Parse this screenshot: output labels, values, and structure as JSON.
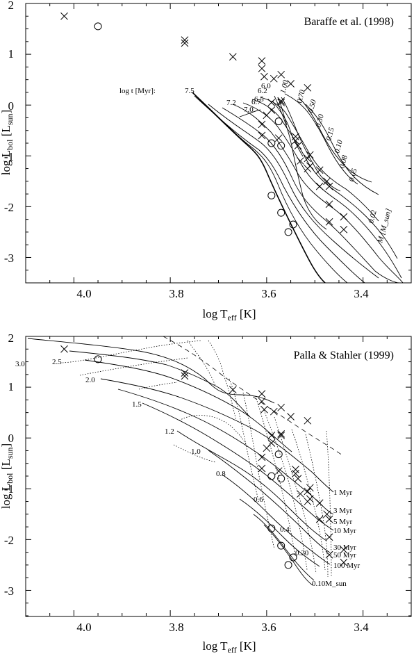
{
  "chart_data": [
    {
      "type": "scatter",
      "title": "Baraffe et al. (1998)",
      "xlabel": "log T_eff [K]",
      "ylabel": "log L_bol [L_sun]",
      "xlim": [
        4.1,
        3.3
      ],
      "ylim": [
        -3.5,
        2.0
      ],
      "xticks": [
        "4.0",
        "3.8",
        "3.6",
        "3.4"
      ],
      "yticks": [
        "2",
        "1",
        "0",
        "-1",
        "-2",
        "-3"
      ],
      "age_label": "log t [Myr]:",
      "mass_label": "M [M_sun]",
      "isochrone_labels": [
        "7.5",
        "7.2",
        "7.0",
        "6.7",
        "6.5",
        "6.2",
        "6.0"
      ],
      "mass_labels": [
        "1.00",
        "0.70",
        "0.50",
        "0.30",
        "0.15",
        "0.10",
        "0.08",
        "0.05",
        "0.02"
      ],
      "series": [
        {
          "marker": "cross",
          "points": [
            [
              4.02,
              1.75
            ],
            [
              3.77,
              1.28
            ],
            [
              3.77,
              1.22
            ],
            [
              3.67,
              0.95
            ],
            [
              3.61,
              0.87
            ],
            [
              3.61,
              0.72
            ],
            [
              3.585,
              0.52
            ],
            [
              3.605,
              0.56
            ],
            [
              3.57,
              0.6
            ],
            [
              3.55,
              0.42
            ],
            [
              3.515,
              0.34
            ],
            [
              3.59,
              0.05
            ],
            [
              3.57,
              0.08
            ],
            [
              3.57,
              0.05
            ],
            [
              3.59,
              -0.1
            ],
            [
              3.6,
              -0.2
            ],
            [
              3.61,
              -0.38
            ],
            [
              3.61,
              -0.6
            ],
            [
              3.54,
              -0.62
            ],
            [
              3.535,
              -0.8
            ],
            [
              3.54,
              -0.7
            ],
            [
              3.51,
              -0.98
            ],
            [
              3.515,
              -1.05
            ],
            [
              3.51,
              -1.2
            ],
            [
              3.515,
              -1.25
            ],
            [
              3.49,
              -1.28
            ],
            [
              3.475,
              -1.5
            ],
            [
              3.47,
              -1.6
            ],
            [
              3.47,
              -1.95
            ],
            [
              3.44,
              -2.2
            ],
            [
              3.47,
              -2.3
            ],
            [
              3.44,
              -2.45
            ],
            [
              3.575,
              -0.65
            ],
            [
              3.53,
              -1.1
            ],
            [
              3.49,
              -1.6
            ]
          ]
        },
        {
          "marker": "circle",
          "points": [
            [
              3.95,
              1.55
            ],
            [
              3.575,
              -0.32
            ],
            [
              3.59,
              -0.75
            ],
            [
              3.57,
              -0.8
            ],
            [
              3.59,
              -1.78
            ],
            [
              3.57,
              -2.12
            ],
            [
              3.545,
              -2.35
            ],
            [
              3.555,
              -2.5
            ]
          ]
        }
      ]
    },
    {
      "type": "scatter",
      "title": "Palla & Stahler (1999)",
      "xlabel": "log T_eff [K]",
      "ylabel": "log L_bol [L_sun]",
      "xlim": [
        4.1,
        3.3
      ],
      "ylim": [
        -3.5,
        2.0
      ],
      "xticks": [
        "4.0",
        "3.8",
        "3.6",
        "3.4"
      ],
      "yticks": [
        "2",
        "1",
        "0",
        "-1",
        "-2",
        "-3"
      ],
      "mass_labels": [
        "3.0",
        "2.5",
        "2.0",
        "1.5",
        "1.2",
        "1.0",
        "0.8",
        "0.6",
        "0.4",
        "0.20",
        "0.10M_sun"
      ],
      "isochrone_labels": [
        "1 Myr",
        "3 Myr",
        "5 Myr",
        "10 Myr",
        "30 Myr",
        "50 Myr",
        "100 Myr"
      ],
      "series": [
        {
          "marker": "cross",
          "points": [
            [
              4.02,
              1.75
            ],
            [
              3.77,
              1.28
            ],
            [
              3.77,
              1.22
            ],
            [
              3.67,
              0.95
            ],
            [
              3.61,
              0.87
            ],
            [
              3.61,
              0.72
            ],
            [
              3.585,
              0.52
            ],
            [
              3.605,
              0.56
            ],
            [
              3.57,
              0.6
            ],
            [
              3.55,
              0.42
            ],
            [
              3.515,
              0.34
            ],
            [
              3.59,
              0.05
            ],
            [
              3.57,
              0.08
            ],
            [
              3.57,
              0.05
            ],
            [
              3.59,
              -0.1
            ],
            [
              3.6,
              -0.2
            ],
            [
              3.61,
              -0.38
            ],
            [
              3.61,
              -0.6
            ],
            [
              3.54,
              -0.62
            ],
            [
              3.535,
              -0.8
            ],
            [
              3.54,
              -0.7
            ],
            [
              3.51,
              -0.98
            ],
            [
              3.515,
              -1.05
            ],
            [
              3.51,
              -1.2
            ],
            [
              3.515,
              -1.25
            ],
            [
              3.49,
              -1.28
            ],
            [
              3.475,
              -1.5
            ],
            [
              3.47,
              -1.6
            ],
            [
              3.47,
              -1.95
            ],
            [
              3.44,
              -2.2
            ],
            [
              3.47,
              -2.3
            ],
            [
              3.44,
              -2.45
            ],
            [
              3.575,
              -0.65
            ],
            [
              3.53,
              -1.1
            ],
            [
              3.49,
              -1.6
            ]
          ]
        },
        {
          "marker": "circle",
          "points": [
            [
              3.95,
              1.55
            ],
            [
              3.575,
              -0.32
            ],
            [
              3.59,
              -0.75
            ],
            [
              3.57,
              -0.8
            ],
            [
              3.59,
              -1.78
            ],
            [
              3.57,
              -2.12
            ],
            [
              3.545,
              -2.35
            ],
            [
              3.555,
              -2.5
            ]
          ]
        }
      ]
    }
  ]
}
